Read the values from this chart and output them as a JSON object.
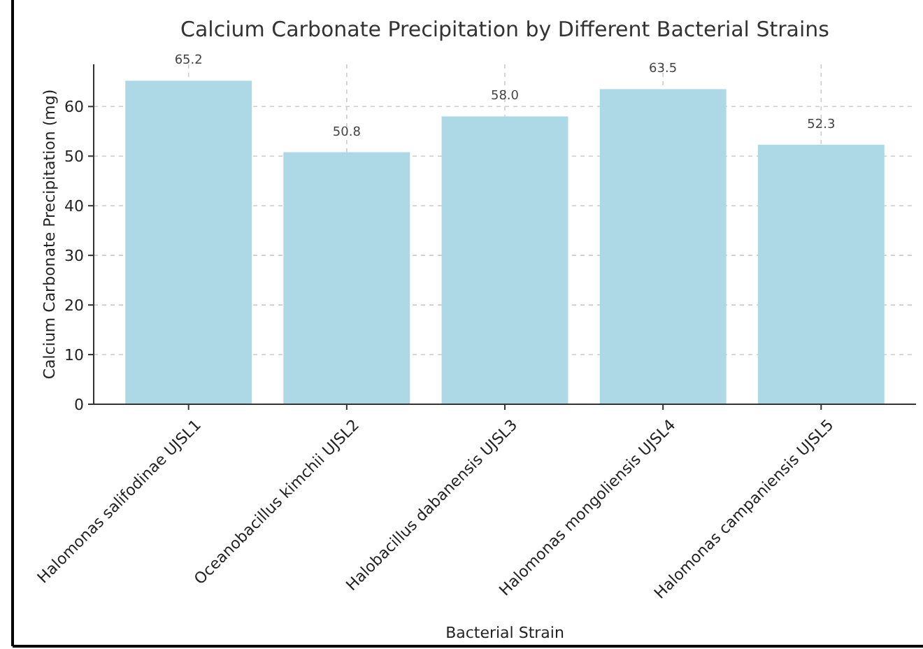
{
  "chart_data": {
    "type": "bar",
    "title": "Calcium Carbonate Precipitation by Different Bacterial Strains",
    "xlabel": "Bacterial Strain",
    "ylabel": "Calcium Carbonate Precipitation (mg)",
    "categories": [
      "Halomonas salifodinae UJSL1",
      "Oceanobacillus kimchii UJSL2",
      "Halobacillus dabanensis UJSL3",
      "Halomonas mongoliensis UJSL4",
      "Halomonas campaniensis UJSL5"
    ],
    "values": [
      65.2,
      50.8,
      58.0,
      63.5,
      52.3
    ],
    "value_labels": [
      "65.2",
      "50.8",
      "58.0",
      "63.5",
      "52.3"
    ],
    "color": "#add8e6",
    "ylim": [
      0,
      68.5
    ],
    "yticks": [
      0,
      10,
      20,
      30,
      40,
      50,
      60
    ],
    "grid": true
  }
}
